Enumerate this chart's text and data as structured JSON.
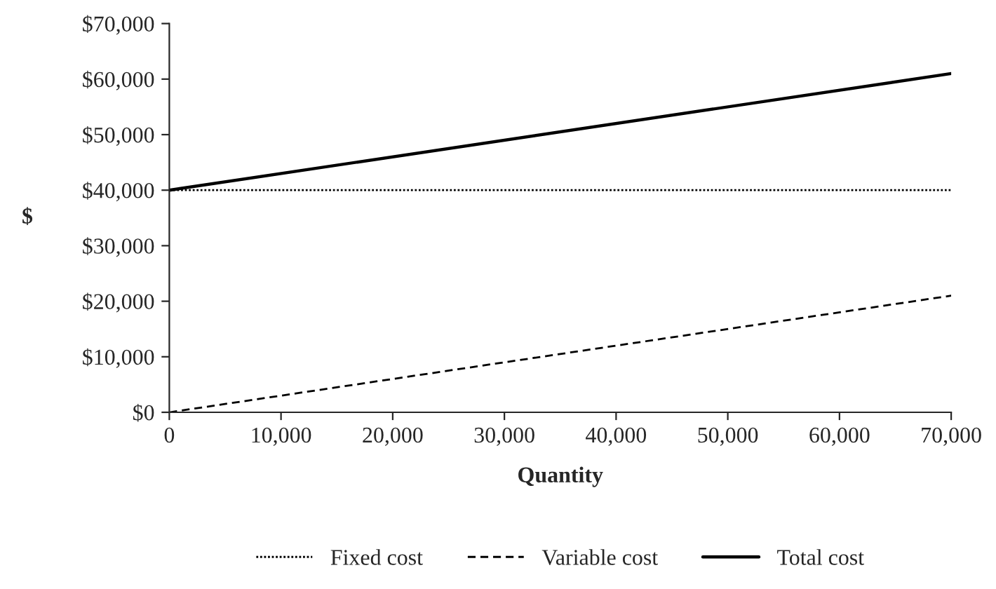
{
  "chart_data": {
    "type": "line",
    "xlabel": "Quantity",
    "ylabel": "$",
    "x": [
      0,
      70000
    ],
    "series": [
      {
        "name": "Fixed cost",
        "color": "#000000",
        "line_style": "dotted",
        "values": [
          40000,
          40000
        ]
      },
      {
        "name": "Variable cost",
        "color": "#000000",
        "line_style": "dashed",
        "values": [
          0,
          21000
        ]
      },
      {
        "name": "Total cost",
        "color": "#000000",
        "line_style": "solid",
        "values": [
          40000,
          61000
        ]
      }
    ],
    "xlim": [
      0,
      70000
    ],
    "ylim": [
      0,
      70000
    ],
    "xticks": [
      {
        "value": 0,
        "label": "0"
      },
      {
        "value": 10000,
        "label": "10,000"
      },
      {
        "value": 20000,
        "label": "20,000"
      },
      {
        "value": 30000,
        "label": "30,000"
      },
      {
        "value": 40000,
        "label": "40,000"
      },
      {
        "value": 50000,
        "label": "50,000"
      },
      {
        "value": 60000,
        "label": "60,000"
      },
      {
        "value": 70000,
        "label": "70,000"
      }
    ],
    "yticks": [
      {
        "value": 0,
        "label": "$0"
      },
      {
        "value": 10000,
        "label": "$10,000"
      },
      {
        "value": 20000,
        "label": "$20,000"
      },
      {
        "value": 30000,
        "label": "$30,000"
      },
      {
        "value": 40000,
        "label": "$40,000"
      },
      {
        "value": 50000,
        "label": "$50,000"
      },
      {
        "value": 60000,
        "label": "$60,000"
      },
      {
        "value": 70000,
        "label": "$70,000"
      }
    ],
    "grid": false,
    "legend": "bottom",
    "marker": "none"
  }
}
